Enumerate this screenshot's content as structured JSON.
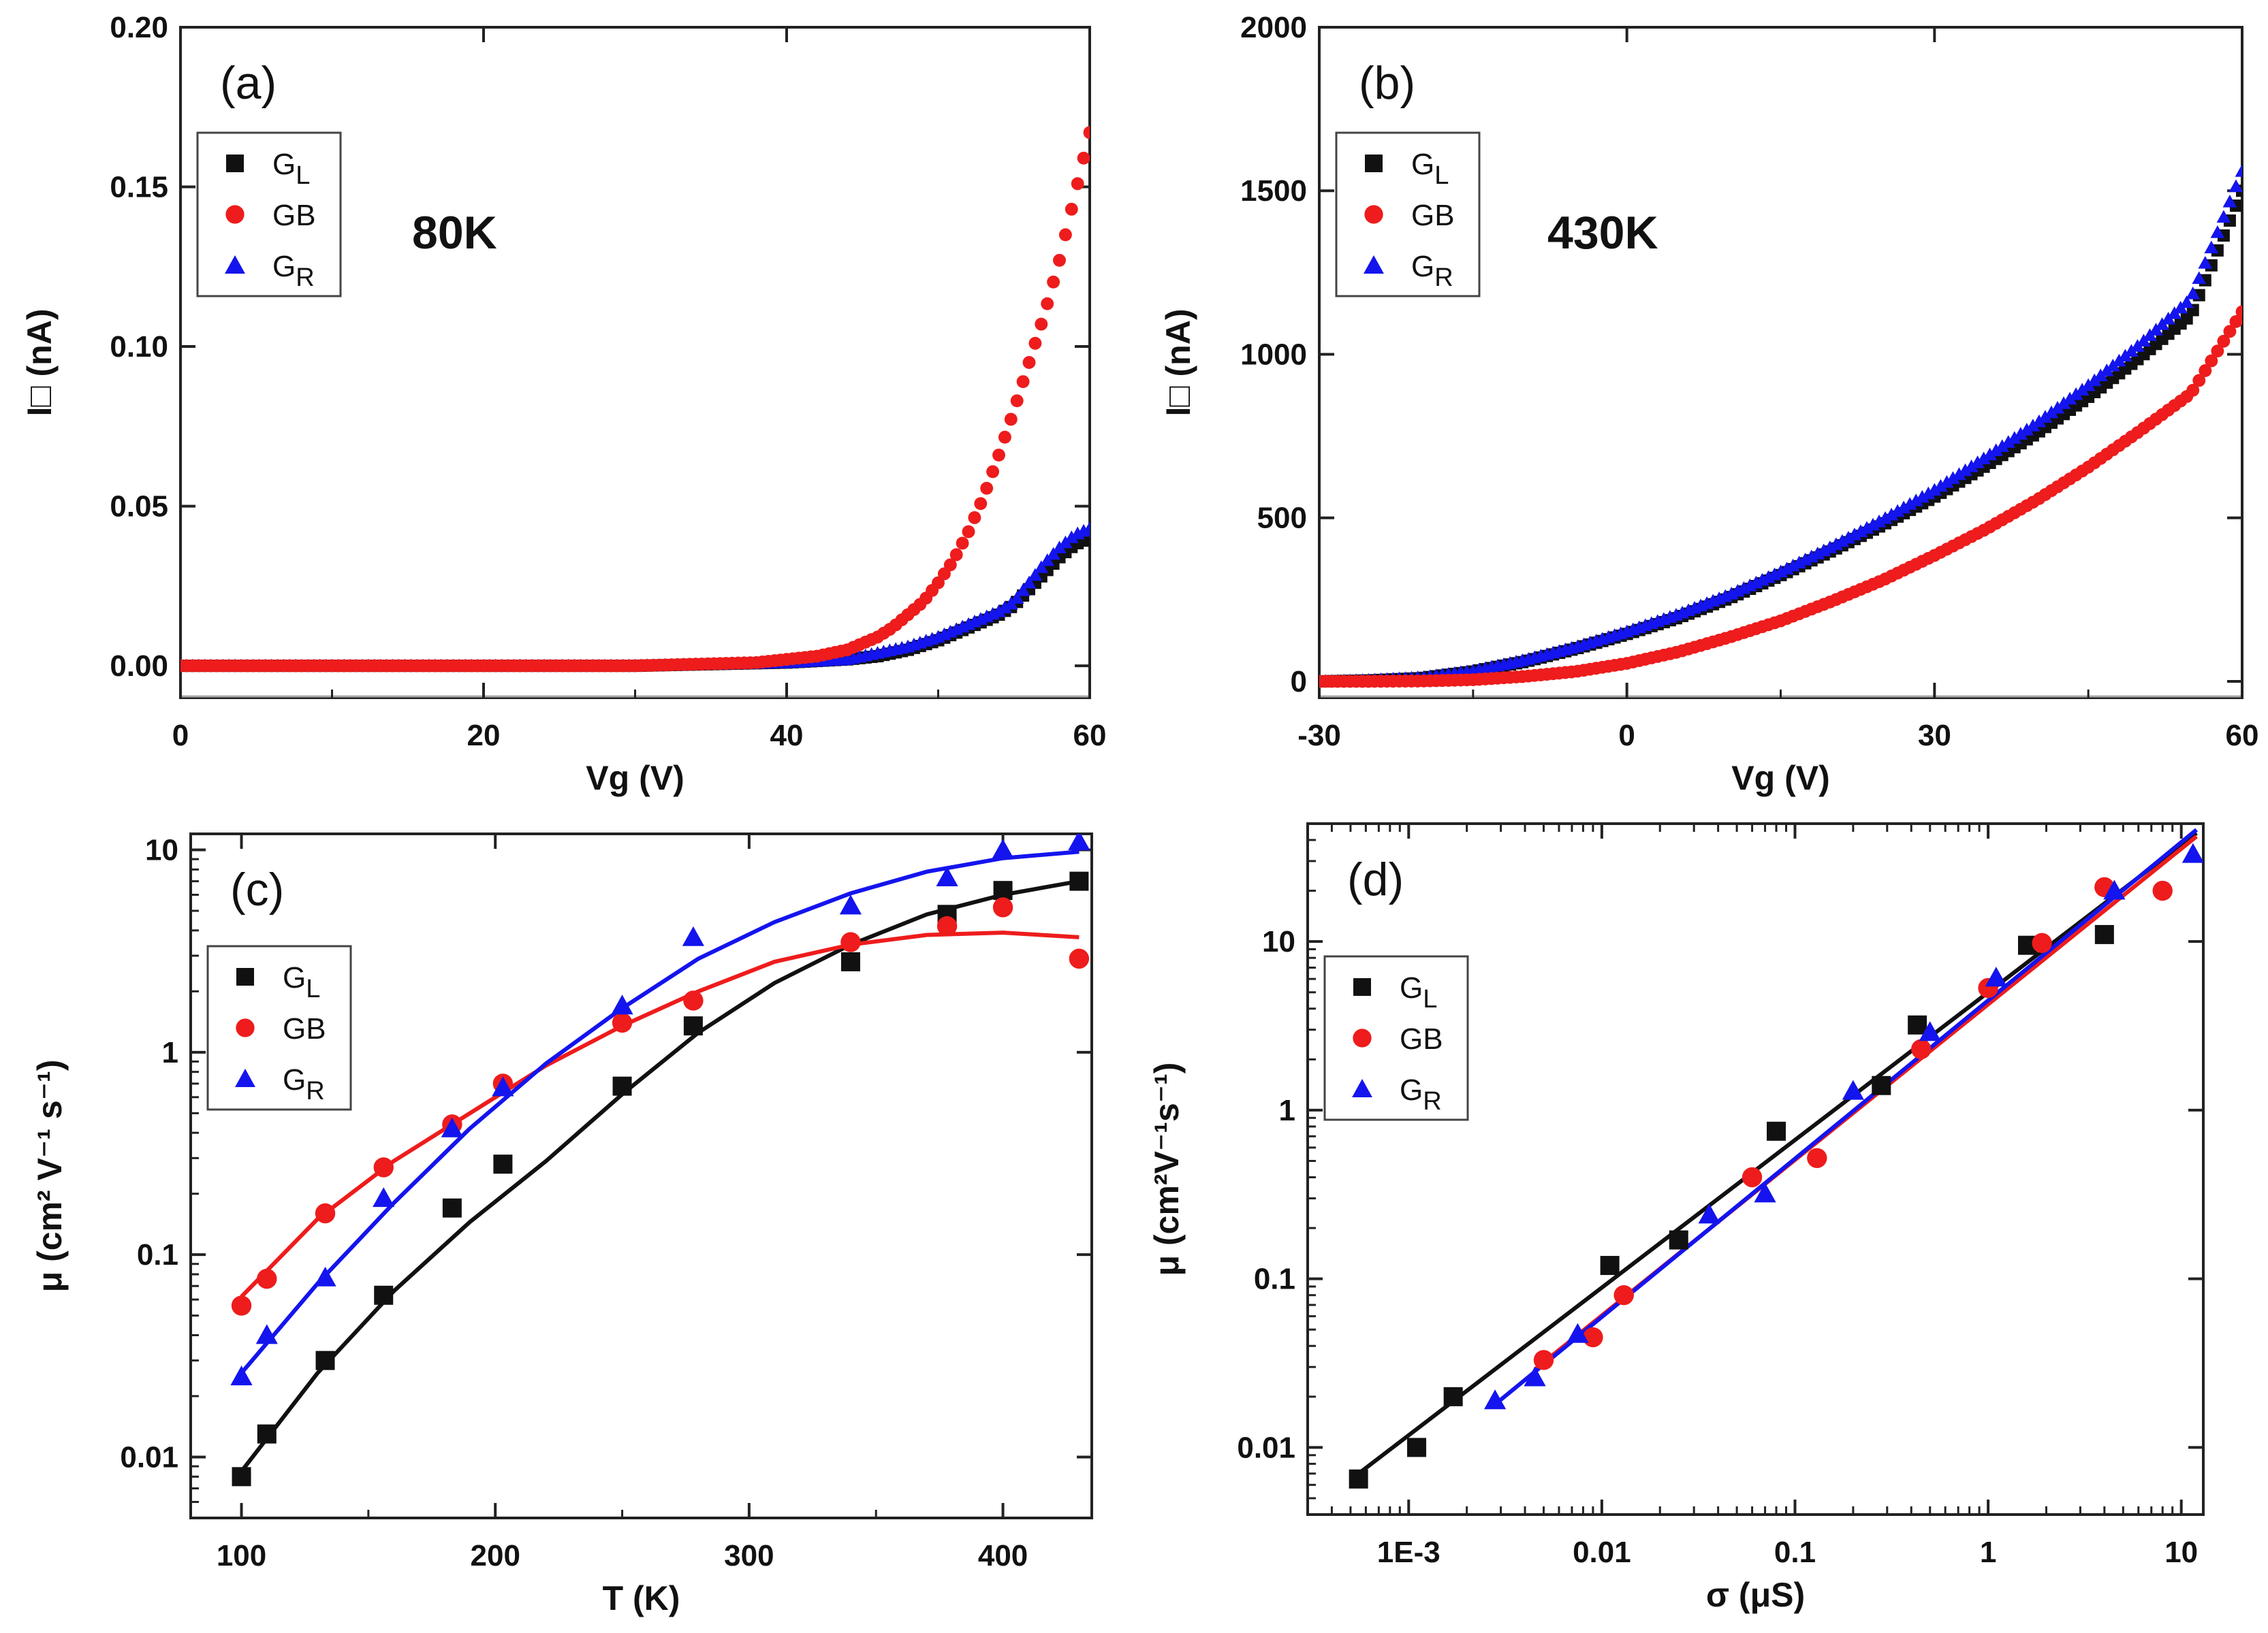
{
  "colors": {
    "GL": "#111111",
    "GB": "#ee1c1c",
    "GR": "#1414ee"
  },
  "chart_data": [
    {
      "type": "scatter",
      "panel_label": "(a)",
      "annotation": "80K",
      "xlabel": "Vg (V)",
      "ylabel": "I□ (nA)",
      "xlim": [
        0,
        60
      ],
      "ylim": [
        -0.01,
        0.2
      ],
      "yscale": "linear",
      "xticks": [
        "0",
        "20",
        "40",
        "60"
      ],
      "yticks": [
        "0.00",
        "0.05",
        "0.10",
        "0.15",
        "0.20"
      ],
      "legend": {
        "position": "top-left",
        "entries": [
          {
            "main": "G",
            "sub": "L",
            "marker": "square",
            "color": "#111111"
          },
          {
            "main": "GB",
            "sub": "",
            "marker": "circle",
            "color": "#ee1c1c"
          },
          {
            "main": "G",
            "sub": "R",
            "marker": "triangle",
            "color": "#1414ee"
          }
        ]
      },
      "series": [
        {
          "key": "GL",
          "marker": "square",
          "x": [
            0,
            10,
            20,
            30,
            40,
            44,
            46,
            48,
            50,
            52,
            54,
            55,
            56,
            57,
            58,
            59,
            60
          ],
          "y": [
            0,
            0,
            0,
            0,
            0.001,
            0.002,
            0.003,
            0.005,
            0.008,
            0.012,
            0.016,
            0.019,
            0.024,
            0.029,
            0.034,
            0.038,
            0.04
          ]
        },
        {
          "key": "GR",
          "marker": "triangle",
          "x": [
            0,
            10,
            20,
            30,
            40,
            44,
            46,
            48,
            50,
            52,
            54,
            55,
            56,
            57,
            58,
            59,
            60
          ],
          "y": [
            0,
            0,
            0,
            0,
            0.001,
            0.002,
            0.004,
            0.006,
            0.009,
            0.013,
            0.017,
            0.02,
            0.026,
            0.032,
            0.037,
            0.041,
            0.043
          ]
        },
        {
          "key": "GB",
          "marker": "circle",
          "x": [
            0,
            10,
            20,
            30,
            38,
            40,
            42,
            44,
            45,
            46,
            47,
            48,
            49,
            50,
            51,
            52,
            53,
            54,
            55,
            56,
            57,
            58,
            59,
            60
          ],
          "y": [
            0,
            0,
            0,
            0,
            0.001,
            0.002,
            0.003,
            0.005,
            0.007,
            0.009,
            0.012,
            0.016,
            0.02,
            0.026,
            0.033,
            0.042,
            0.053,
            0.066,
            0.08,
            0.095,
            0.11,
            0.127,
            0.147,
            0.167
          ]
        }
      ]
    },
    {
      "type": "scatter",
      "panel_label": "(b)",
      "annotation": "430K",
      "xlabel": "Vg (V)",
      "ylabel": "I□ (nA)",
      "xlim": [
        -30,
        60
      ],
      "ylim": [
        -50,
        2000
      ],
      "yscale": "linear",
      "xticks": [
        "-30",
        "0",
        "30",
        "60"
      ],
      "yticks": [
        "0",
        "500",
        "1000",
        "1500",
        "2000"
      ],
      "legend": {
        "position": "top-left",
        "entries": [
          {
            "main": "G",
            "sub": "L",
            "marker": "square",
            "color": "#111111"
          },
          {
            "main": "GB",
            "sub": "",
            "marker": "circle",
            "color": "#ee1c1c"
          },
          {
            "main": "G",
            "sub": "R",
            "marker": "triangle",
            "color": "#1414ee"
          }
        ]
      },
      "series": [
        {
          "key": "GL",
          "marker": "square",
          "x": [
            -30,
            -25,
            -20,
            -15,
            -10,
            -5,
            0,
            5,
            10,
            15,
            20,
            25,
            30,
            35,
            40,
            45,
            50,
            55,
            60
          ],
          "y": [
            0,
            3,
            10,
            30,
            60,
            100,
            145,
            195,
            255,
            325,
            400,
            480,
            565,
            660,
            760,
            870,
            990,
            1120,
            1500
          ]
        },
        {
          "key": "GR",
          "marker": "triangle",
          "x": [
            -30,
            -25,
            -20,
            -15,
            -10,
            -5,
            0,
            5,
            10,
            15,
            20,
            25,
            30,
            35,
            40,
            45,
            50,
            55,
            60
          ],
          "y": [
            0,
            4,
            12,
            32,
            65,
            105,
            152,
            205,
            265,
            335,
            412,
            495,
            585,
            685,
            790,
            905,
            1030,
            1170,
            1560
          ]
        },
        {
          "key": "GB",
          "marker": "circle",
          "x": [
            -30,
            -25,
            -20,
            -15,
            -10,
            -5,
            0,
            5,
            10,
            15,
            20,
            25,
            30,
            35,
            40,
            45,
            50,
            55,
            60
          ],
          "y": [
            0,
            0,
            1,
            5,
            15,
            30,
            55,
            90,
            135,
            185,
            245,
            310,
            385,
            465,
            555,
            655,
            765,
            880,
            1130
          ]
        }
      ]
    },
    {
      "type": "scatter",
      "panel_label": "(c)",
      "xlabel": "T (K)",
      "ylabel": "μ (cm² V⁻¹ s⁻¹)",
      "xlim": [
        80,
        435
      ],
      "ylim": [
        0.005,
        12
      ],
      "yscale": "log",
      "xticks": [
        "100",
        "200",
        "300",
        "400"
      ],
      "yticks": [
        "0.01",
        "0.1",
        "1",
        "10"
      ],
      "legend": {
        "position": "top-left",
        "entries": [
          {
            "main": "G",
            "sub": "L",
            "marker": "square",
            "color": "#111111"
          },
          {
            "main": "GB",
            "sub": "",
            "marker": "circle",
            "color": "#ee1c1c"
          },
          {
            "main": "G",
            "sub": "R",
            "marker": "triangle",
            "color": "#1414ee"
          }
        ]
      },
      "series": [
        {
          "key": "GL",
          "marker": "square",
          "x": [
            100,
            110,
            133,
            156,
            183,
            203,
            250,
            278,
            340,
            378,
            400,
            430
          ],
          "y": [
            0.008,
            0.013,
            0.03,
            0.063,
            0.17,
            0.28,
            0.68,
            1.35,
            2.8,
            4.8,
            6.3,
            7.0
          ]
        },
        {
          "key": "GB",
          "marker": "circle",
          "x": [
            100,
            110,
            133,
            156,
            183,
            203,
            250,
            278,
            340,
            378,
            400,
            430
          ],
          "y": [
            0.056,
            0.076,
            0.16,
            0.27,
            0.44,
            0.7,
            1.4,
            1.8,
            3.5,
            4.2,
            5.2,
            2.9
          ]
        },
        {
          "key": "GR",
          "marker": "triangle",
          "x": [
            100,
            110,
            133,
            156,
            183,
            203,
            250,
            278,
            340,
            378,
            400,
            430
          ],
          "y": [
            0.025,
            0.04,
            0.077,
            0.19,
            0.42,
            0.67,
            1.7,
            3.7,
            5.3,
            7.3,
            10.0,
            11.0
          ]
        }
      ],
      "fits": [
        {
          "key": "GL",
          "x": [
            100,
            130,
            160,
            190,
            220,
            250,
            280,
            310,
            340,
            370,
            400,
            430
          ],
          "y": [
            0.0085,
            0.026,
            0.066,
            0.145,
            0.29,
            0.62,
            1.25,
            2.2,
            3.4,
            4.8,
            6.0,
            7.0
          ]
        },
        {
          "key": "GB",
          "x": [
            100,
            130,
            160,
            190,
            220,
            250,
            280,
            310,
            340,
            370,
            400,
            430
          ],
          "y": [
            0.062,
            0.15,
            0.29,
            0.5,
            0.86,
            1.35,
            2.0,
            2.8,
            3.4,
            3.8,
            3.9,
            3.7
          ]
        },
        {
          "key": "GR",
          "x": [
            100,
            130,
            160,
            190,
            220,
            250,
            280,
            310,
            340,
            370,
            400,
            430
          ],
          "y": [
            0.026,
            0.072,
            0.18,
            0.42,
            0.88,
            1.65,
            2.9,
            4.4,
            6.1,
            7.8,
            9.1,
            9.8
          ]
        }
      ]
    },
    {
      "type": "scatter",
      "panel_label": "(d)",
      "xlabel": "σ (μS)",
      "ylabel": "μ (cm²V⁻¹s⁻¹)",
      "xlim": [
        0.0003,
        13
      ],
      "ylim": [
        0.004,
        50
      ],
      "xscale": "log",
      "yscale": "log",
      "xticks": [
        "1E-3",
        "0.01",
        "0.1",
        "1",
        "10"
      ],
      "yticks": [
        "0.01",
        "0.1",
        "1",
        "10"
      ],
      "legend": {
        "position": "top-left",
        "entries": [
          {
            "main": "G",
            "sub": "L",
            "marker": "square",
            "color": "#111111"
          },
          {
            "main": "GB",
            "sub": "",
            "marker": "circle",
            "color": "#ee1c1c"
          },
          {
            "main": "G",
            "sub": "R",
            "marker": "triangle",
            "color": "#1414ee"
          }
        ]
      },
      "series": [
        {
          "key": "GL",
          "marker": "square",
          "x": [
            0.00055,
            0.0011,
            0.0017,
            0.011,
            0.025,
            0.08,
            0.28,
            0.43,
            1.6,
            4.0
          ],
          "y": [
            0.0065,
            0.01,
            0.02,
            0.12,
            0.17,
            0.75,
            1.4,
            3.2,
            9.5,
            11.0
          ]
        },
        {
          "key": "GB",
          "marker": "circle",
          "x": [
            0.005,
            0.009,
            0.013,
            0.06,
            0.13,
            0.45,
            1.0,
            1.9,
            4.0,
            8.0
          ],
          "y": [
            0.033,
            0.045,
            0.08,
            0.4,
            0.52,
            2.3,
            5.3,
            9.8,
            21.0,
            20.0
          ]
        },
        {
          "key": "GR",
          "marker": "triangle",
          "x": [
            0.0028,
            0.0045,
            0.0075,
            0.036,
            0.07,
            0.2,
            0.5,
            1.1,
            4.5,
            11.5
          ],
          "y": [
            0.019,
            0.026,
            0.047,
            0.24,
            0.32,
            1.3,
            2.9,
            6.1,
            20.0,
            33.0
          ]
        }
      ],
      "fits": [
        {
          "key": "GL",
          "x": [
            0.00055,
            12
          ],
          "y": [
            0.007,
            44
          ]
        },
        {
          "key": "GB",
          "x": [
            0.0045,
            12
          ],
          "y": [
            0.029,
            42
          ]
        },
        {
          "key": "GR",
          "x": [
            0.0028,
            12
          ],
          "y": [
            0.018,
            46
          ]
        }
      ]
    }
  ]
}
